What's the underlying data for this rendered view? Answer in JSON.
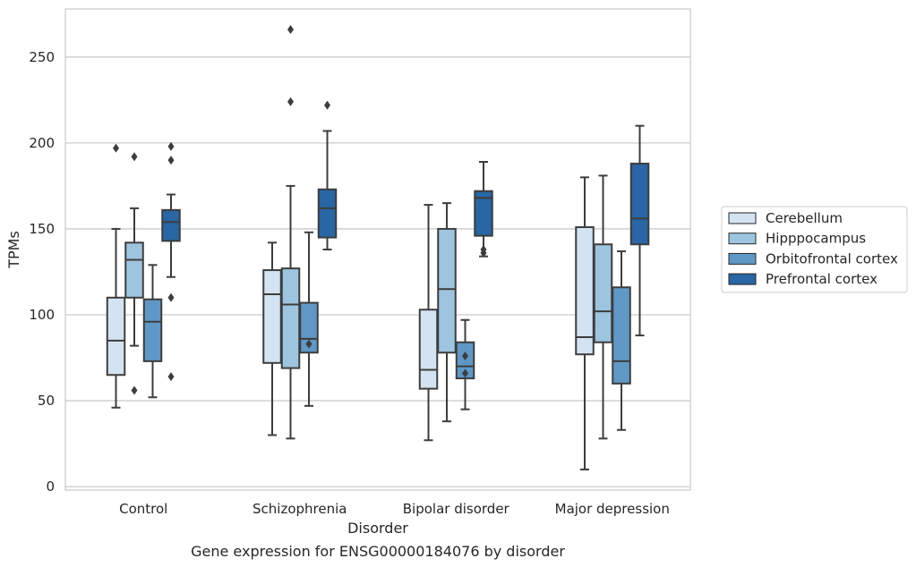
{
  "chart_data": {
    "type": "boxplot",
    "title": "Gene expression for ENSG00000184076 by disorder",
    "xlabel": "Disorder",
    "ylabel": "TPMs",
    "ylim": [
      -2,
      278
    ],
    "yticks": [
      0,
      50,
      100,
      150,
      200,
      250
    ],
    "grid": "horizontal",
    "legend_position": "right",
    "categories": [
      "Control",
      "Schizophrenia",
      "Bipolar disorder",
      "Major depression"
    ],
    "series": [
      {
        "name": "Cerebellum",
        "color": "#d3e3f2",
        "boxes": [
          {
            "whislo": 46,
            "q1": 65,
            "med": 85,
            "q3": 110,
            "whishi": 150,
            "fliers": [
              197
            ]
          },
          {
            "whislo": 30,
            "q1": 72,
            "med": 112,
            "q3": 126,
            "whishi": 142,
            "fliers": []
          },
          {
            "whislo": 27,
            "q1": 57,
            "med": 68,
            "q3": 103,
            "whishi": 164,
            "fliers": []
          },
          {
            "whislo": 10,
            "q1": 77,
            "med": 87,
            "q3": 151,
            "whishi": 180,
            "fliers": []
          }
        ]
      },
      {
        "name": "Hipppocampus",
        "color": "#9ec5df",
        "boxes": [
          {
            "whislo": 82,
            "q1": 110,
            "med": 132,
            "q3": 142,
            "whishi": 162,
            "fliers": [
              56,
              192
            ]
          },
          {
            "whislo": 28,
            "q1": 69,
            "med": 106,
            "q3": 127,
            "whishi": 175,
            "fliers": [
              224,
              266
            ]
          },
          {
            "whislo": 38,
            "q1": 78,
            "med": 115,
            "q3": 150,
            "whishi": 165,
            "fliers": []
          },
          {
            "whislo": 28,
            "q1": 84,
            "med": 102,
            "q3": 141,
            "whishi": 181,
            "fliers": []
          }
        ]
      },
      {
        "name": "Orbitofrontal cortex",
        "color": "#5f98c6",
        "boxes": [
          {
            "whislo": 52,
            "q1": 73,
            "med": 96,
            "q3": 109,
            "whishi": 129,
            "fliers": []
          },
          {
            "whislo": 47,
            "q1": 78,
            "med": 86,
            "q3": 107,
            "whishi": 148,
            "fliers": [
              83
            ]
          },
          {
            "whislo": 45,
            "q1": 63,
            "med": 70,
            "q3": 84,
            "whishi": 97,
            "fliers": [
              66,
              76
            ]
          },
          {
            "whislo": 33,
            "q1": 60,
            "med": 73,
            "q3": 116,
            "whishi": 137,
            "fliers": []
          }
        ]
      },
      {
        "name": "Prefrontal cortex",
        "color": "#2866a5",
        "boxes": [
          {
            "whislo": 122,
            "q1": 143,
            "med": 154,
            "q3": 161,
            "whishi": 170,
            "fliers": [
              64,
              110,
              190,
              198
            ]
          },
          {
            "whislo": 138,
            "q1": 145,
            "med": 162,
            "q3": 173,
            "whishi": 207,
            "fliers": [
              222
            ]
          },
          {
            "whislo": 134,
            "q1": 146,
            "med": 168,
            "q3": 172,
            "whishi": 189,
            "fliers": [
              136,
              138
            ]
          },
          {
            "whislo": 88,
            "q1": 141,
            "med": 156,
            "q3": 188,
            "whishi": 210,
            "fliers": []
          }
        ]
      }
    ]
  }
}
